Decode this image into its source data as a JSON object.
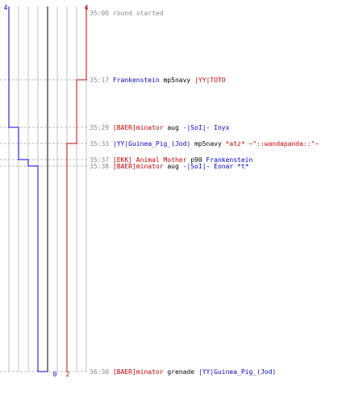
{
  "chart_data": {
    "type": "line",
    "title": "",
    "score_axis": {
      "min": 0,
      "max": 4,
      "top_left_label": "4",
      "top_right_label": "4"
    },
    "final_scores": [
      {
        "team": "blue",
        "value": 0,
        "label": "0",
        "color": "#0000cc"
      },
      {
        "team": "red",
        "value": 2,
        "label": "2",
        "color": "#cc0000"
      }
    ],
    "time_range": [
      "35:00",
      "36:30"
    ],
    "series": [
      {
        "color": "#0000cc",
        "start": 4,
        "steps": [
          {
            "time": "35:29",
            "value": 3
          },
          {
            "time": "35:37",
            "value": 2
          },
          {
            "time": "35:38",
            "value": 1
          },
          {
            "time": "36:30",
            "value": 0
          }
        ]
      },
      {
        "color": "#cc0000",
        "start": 4,
        "steps": [
          {
            "time": "35:17",
            "value": 3
          },
          {
            "time": "35:33",
            "value": 2
          }
        ]
      }
    ],
    "events": [
      {
        "time": "35:00",
        "parts": [
          {
            "text": "round started",
            "color": "#888888"
          }
        ]
      },
      {
        "time": "35:17",
        "parts": [
          {
            "text": "Frankenstein",
            "color": "#0000cc"
          },
          {
            "text": " mp5navy ",
            "color": "#000000"
          },
          {
            "text": "|YY|TOTO",
            "color": "#cc0000"
          }
        ]
      },
      {
        "time": "35:29",
        "parts": [
          {
            "text": "[BAER]minator",
            "color": "#cc0000"
          },
          {
            "text": " aug ",
            "color": "#000000"
          },
          {
            "text": "-|SoI|- Inyx",
            "color": "#0000cc"
          }
        ]
      },
      {
        "time": "35:33",
        "parts": [
          {
            "text": "|YY|Guinea_Pig_(Jod)",
            "color": "#0000cc"
          },
          {
            "text": " mp5navy ",
            "color": "#000000"
          },
          {
            "text": "*atz* ~\"::wandapanda::\"~",
            "color": "#cc0000"
          }
        ]
      },
      {
        "time": "35:37",
        "parts": [
          {
            "text": "[EKK] Animal Mother",
            "color": "#cc0000"
          },
          {
            "text": " p90 ",
            "color": "#000000"
          },
          {
            "text": "Frankenstein",
            "color": "#0000cc"
          }
        ]
      },
      {
        "time": "35:38",
        "parts": [
          {
            "text": "[BAER]minator",
            "color": "#cc0000"
          },
          {
            "text": " aug ",
            "color": "#000000"
          },
          {
            "text": "-|SoI|- Eonar *t*",
            "color": "#0000cc"
          }
        ]
      },
      {
        "time": "36:30",
        "parts": [
          {
            "text": "[BAER]minator",
            "color": "#cc0000"
          },
          {
            "text": " grenade ",
            "color": "#000000"
          },
          {
            "text": "|YY|Guinea_Pig_(Jod)",
            "color": "#0000cc"
          }
        ]
      }
    ],
    "colors": {
      "grid": "#c0c0c0",
      "center_line": "#808080",
      "time": "#888888",
      "guide": "#bbbbbb"
    }
  }
}
